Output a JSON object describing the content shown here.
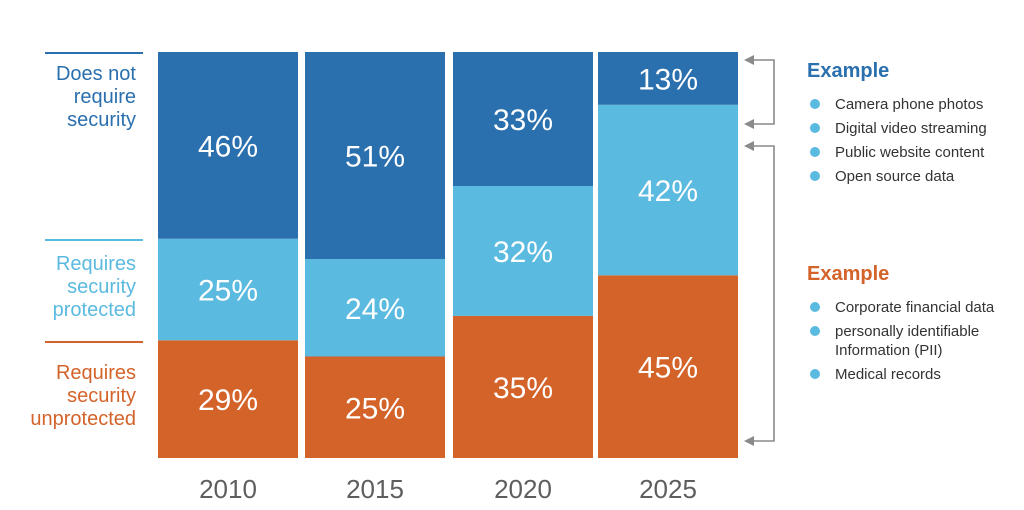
{
  "chart_data": {
    "type": "bar",
    "stacked": true,
    "categories": [
      "2010",
      "2015",
      "2020",
      "2025"
    ],
    "series": [
      {
        "name": "Requires security unprotected",
        "values": [
          29,
          25,
          35,
          45
        ],
        "color": "#d4632a"
      },
      {
        "name": "Requires security protected",
        "values": [
          25,
          24,
          32,
          42
        ],
        "color": "#5bbadf"
      },
      {
        "name": "Does not require security",
        "values": [
          46,
          51,
          33,
          13
        ],
        "color": "#2a6fae"
      }
    ],
    "value_labels": [
      [
        "29%",
        "25%",
        "35%",
        "45%"
      ],
      [
        "25%",
        "24%",
        "32%",
        "42%"
      ],
      [
        "46%",
        "51%",
        "33%",
        "13%"
      ]
    ],
    "ylim": [
      0,
      100
    ]
  },
  "row_labels": {
    "not_required": {
      "lines": [
        "Does not",
        "require",
        "security"
      ],
      "color": "#2a6fae"
    },
    "protected": {
      "lines": [
        "Requires",
        "security",
        "protected"
      ],
      "color": "#5bbadf"
    },
    "unprotected": {
      "lines": [
        "Requires",
        "security",
        "unprotected"
      ],
      "color": "#d4632a"
    }
  },
  "examples": [
    {
      "title": "Example",
      "color": "#2a6fae",
      "items": [
        "Camera phone photos",
        "Digital video streaming",
        "Public website content",
        "Open source data"
      ]
    },
    {
      "title": "Example",
      "color": "#d4632a",
      "items": [
        "Corporate financial data",
        "personally identifiable Information (PII)",
        "Medical records"
      ]
    }
  ],
  "bullet_color": "#5bbadf",
  "bracket_color": "#8a8a8a"
}
